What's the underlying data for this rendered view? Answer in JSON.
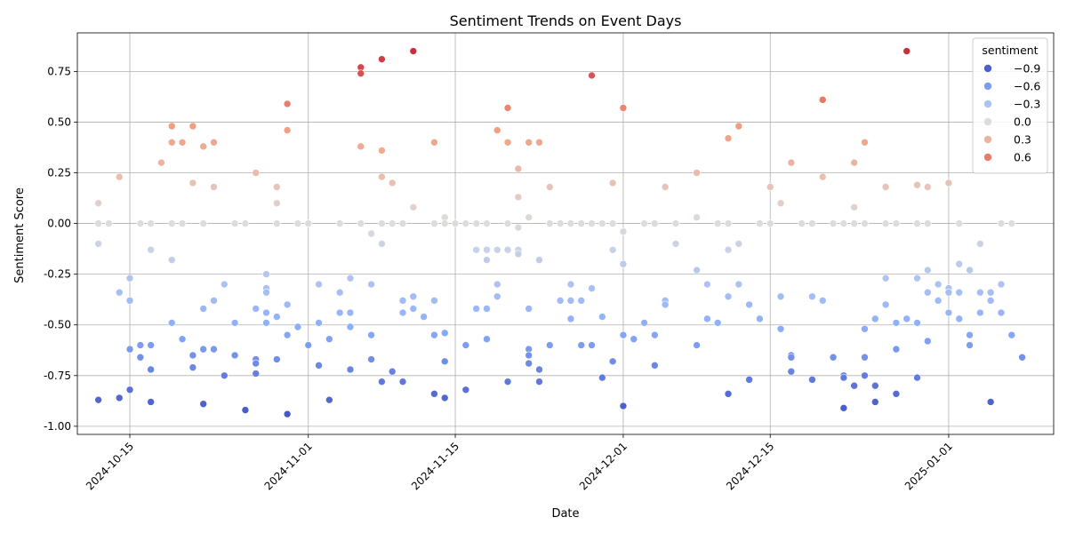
{
  "chart_data": {
    "type": "scatter",
    "title": "Sentiment Trends on Event Days",
    "xlabel": "Date",
    "ylabel": "Sentiment Score",
    "xlim": [
      "2024-10-10",
      "2025-01-11"
    ],
    "ylim": [
      -1.04,
      0.94
    ],
    "x_ticks": [
      "2024-10-15",
      "2024-11-01",
      "2024-11-15",
      "2024-12-01",
      "2024-12-15",
      "2025-01-01"
    ],
    "y_ticks": [
      "-1.00",
      "-0.75",
      "-0.50",
      "-0.25",
      "0.00",
      "0.25",
      "0.50",
      "0.75"
    ],
    "y_tick_values": [
      -1.0,
      -0.75,
      -0.5,
      -0.25,
      0.0,
      0.25,
      0.5,
      0.75
    ],
    "grid": true,
    "colormap": "coolwarm",
    "color_range": [
      -1.0,
      1.0
    ],
    "legend": {
      "title": "sentiment",
      "position": "top-right",
      "entries": [
        {
          "label": "−0.9",
          "value": -0.9
        },
        {
          "label": "−0.6",
          "value": -0.6
        },
        {
          "label": "−0.3",
          "value": -0.3
        },
        {
          "label": "0.0",
          "value": 0.0
        },
        {
          "label": "0.3",
          "value": 0.3
        },
        {
          "label": "0.6",
          "value": 0.6
        }
      ]
    },
    "points": [
      [
        "2024-10-12",
        0.1
      ],
      [
        "2024-10-12",
        0.0
      ],
      [
        "2024-10-12",
        -0.1
      ],
      [
        "2024-10-12",
        -0.87
      ],
      [
        "2024-10-13",
        0.0
      ],
      [
        "2024-10-14",
        0.23
      ],
      [
        "2024-10-14",
        -0.34
      ],
      [
        "2024-10-14",
        -0.86
      ],
      [
        "2024-10-15",
        -0.27
      ],
      [
        "2024-10-15",
        -0.38
      ],
      [
        "2024-10-15",
        -0.62
      ],
      [
        "2024-10-15",
        -0.82
      ],
      [
        "2024-10-16",
        0.0
      ],
      [
        "2024-10-16",
        -0.6
      ],
      [
        "2024-10-16",
        -0.66
      ],
      [
        "2024-10-17",
        0.0
      ],
      [
        "2024-10-17",
        -0.13
      ],
      [
        "2024-10-17",
        -0.6
      ],
      [
        "2024-10-17",
        -0.72
      ],
      [
        "2024-10-17",
        -0.88
      ],
      [
        "2024-10-18",
        0.3
      ],
      [
        "2024-10-19",
        0.48
      ],
      [
        "2024-10-19",
        0.4
      ],
      [
        "2024-10-19",
        0.0
      ],
      [
        "2024-10-19",
        -0.18
      ],
      [
        "2024-10-19",
        -0.49
      ],
      [
        "2024-10-20",
        0.4
      ],
      [
        "2024-10-20",
        0.0
      ],
      [
        "2024-10-20",
        -0.57
      ],
      [
        "2024-10-21",
        0.48
      ],
      [
        "2024-10-21",
        0.2
      ],
      [
        "2024-10-21",
        -0.65
      ],
      [
        "2024-10-21",
        -0.71
      ],
      [
        "2024-10-22",
        0.38
      ],
      [
        "2024-10-22",
        0.0
      ],
      [
        "2024-10-22",
        -0.42
      ],
      [
        "2024-10-22",
        -0.62
      ],
      [
        "2024-10-22",
        -0.89
      ],
      [
        "2024-10-23",
        0.4
      ],
      [
        "2024-10-23",
        0.18
      ],
      [
        "2024-10-23",
        -0.38
      ],
      [
        "2024-10-23",
        -0.62
      ],
      [
        "2024-10-24",
        -0.3
      ],
      [
        "2024-10-24",
        -0.75
      ],
      [
        "2024-10-25",
        0.0
      ],
      [
        "2024-10-25",
        -0.49
      ],
      [
        "2024-10-25",
        -0.65
      ],
      [
        "2024-10-26",
        0.0
      ],
      [
        "2024-10-26",
        -0.92
      ],
      [
        "2024-10-27",
        0.25
      ],
      [
        "2024-10-27",
        -0.42
      ],
      [
        "2024-10-27",
        -0.67
      ],
      [
        "2024-10-27",
        -0.69
      ],
      [
        "2024-10-27",
        -0.74
      ],
      [
        "2024-10-28",
        -0.25
      ],
      [
        "2024-10-28",
        -0.32
      ],
      [
        "2024-10-28",
        -0.34
      ],
      [
        "2024-10-28",
        -0.44
      ],
      [
        "2024-10-28",
        -0.49
      ],
      [
        "2024-10-29",
        0.18
      ],
      [
        "2024-10-29",
        0.1
      ],
      [
        "2024-10-29",
        0.0
      ],
      [
        "2024-10-29",
        -0.46
      ],
      [
        "2024-10-29",
        -0.67
      ],
      [
        "2024-10-30",
        0.59
      ],
      [
        "2024-10-30",
        0.46
      ],
      [
        "2024-10-30",
        -0.4
      ],
      [
        "2024-10-30",
        -0.55
      ],
      [
        "2024-10-30",
        -0.94
      ],
      [
        "2024-10-31",
        0.0
      ],
      [
        "2024-10-31",
        -0.51
      ],
      [
        "2024-11-01",
        0.0
      ],
      [
        "2024-11-01",
        -0.6
      ],
      [
        "2024-11-02",
        -0.3
      ],
      [
        "2024-11-02",
        -0.49
      ],
      [
        "2024-11-02",
        -0.7
      ],
      [
        "2024-11-03",
        -0.57
      ],
      [
        "2024-11-03",
        -0.87
      ],
      [
        "2024-11-04",
        0.0
      ],
      [
        "2024-11-04",
        -0.34
      ],
      [
        "2024-11-04",
        -0.44
      ],
      [
        "2024-11-05",
        -0.27
      ],
      [
        "2024-11-05",
        -0.44
      ],
      [
        "2024-11-05",
        -0.51
      ],
      [
        "2024-11-05",
        -0.72
      ],
      [
        "2024-11-06",
        0.77
      ],
      [
        "2024-11-06",
        0.74
      ],
      [
        "2024-11-06",
        0.38
      ],
      [
        "2024-11-06",
        0.0
      ],
      [
        "2024-11-07",
        -0.05
      ],
      [
        "2024-11-07",
        -0.3
      ],
      [
        "2024-11-07",
        -0.55
      ],
      [
        "2024-11-07",
        -0.67
      ],
      [
        "2024-11-08",
        0.81
      ],
      [
        "2024-11-08",
        0.36
      ],
      [
        "2024-11-08",
        0.23
      ],
      [
        "2024-11-08",
        0.0
      ],
      [
        "2024-11-08",
        -0.1
      ],
      [
        "2024-11-08",
        -0.78
      ],
      [
        "2024-11-09",
        0.2
      ],
      [
        "2024-11-09",
        0.0
      ],
      [
        "2024-11-09",
        -0.73
      ],
      [
        "2024-11-10",
        0.0
      ],
      [
        "2024-11-10",
        -0.38
      ],
      [
        "2024-11-10",
        -0.44
      ],
      [
        "2024-11-10",
        -0.78
      ],
      [
        "2024-11-11",
        0.85
      ],
      [
        "2024-11-11",
        0.08
      ],
      [
        "2024-11-11",
        -0.36
      ],
      [
        "2024-11-11",
        -0.42
      ],
      [
        "2024-11-12",
        -0.46
      ],
      [
        "2024-11-13",
        0.4
      ],
      [
        "2024-11-13",
        0.0
      ],
      [
        "2024-11-13",
        -0.38
      ],
      [
        "2024-11-13",
        -0.55
      ],
      [
        "2024-11-13",
        -0.84
      ],
      [
        "2024-11-14",
        0.03
      ],
      [
        "2024-11-14",
        0.0
      ],
      [
        "2024-11-14",
        -0.54
      ],
      [
        "2024-11-14",
        -0.68
      ],
      [
        "2024-11-14",
        -0.86
      ],
      [
        "2024-11-15",
        0.0
      ],
      [
        "2024-11-16",
        0.0
      ],
      [
        "2024-11-16",
        -0.6
      ],
      [
        "2024-11-16",
        -0.82
      ],
      [
        "2024-11-17",
        0.0
      ],
      [
        "2024-11-17",
        -0.13
      ],
      [
        "2024-11-17",
        -0.42
      ],
      [
        "2024-11-18",
        0.0
      ],
      [
        "2024-11-18",
        -0.13
      ],
      [
        "2024-11-18",
        -0.18
      ],
      [
        "2024-11-18",
        -0.42
      ],
      [
        "2024-11-18",
        -0.57
      ],
      [
        "2024-11-19",
        0.46
      ],
      [
        "2024-11-19",
        -0.13
      ],
      [
        "2024-11-19",
        -0.3
      ],
      [
        "2024-11-19",
        -0.36
      ],
      [
        "2024-11-20",
        0.57
      ],
      [
        "2024-11-20",
        0.4
      ],
      [
        "2024-11-20",
        0.0
      ],
      [
        "2024-11-20",
        -0.13
      ],
      [
        "2024-11-20",
        -0.78
      ],
      [
        "2024-11-21",
        0.27
      ],
      [
        "2024-11-21",
        0.13
      ],
      [
        "2024-11-21",
        -0.02
      ],
      [
        "2024-11-21",
        -0.13
      ],
      [
        "2024-11-21",
        -0.15
      ],
      [
        "2024-11-22",
        0.4
      ],
      [
        "2024-11-22",
        0.03
      ],
      [
        "2024-11-22",
        -0.42
      ],
      [
        "2024-11-22",
        -0.62
      ],
      [
        "2024-11-22",
        -0.65
      ],
      [
        "2024-11-22",
        -0.69
      ],
      [
        "2024-11-23",
        0.4
      ],
      [
        "2024-11-23",
        -0.18
      ],
      [
        "2024-11-23",
        -0.72
      ],
      [
        "2024-11-23",
        -0.78
      ],
      [
        "2024-11-24",
        0.18
      ],
      [
        "2024-11-24",
        0.0
      ],
      [
        "2024-11-24",
        -0.6
      ],
      [
        "2024-11-25",
        0.0
      ],
      [
        "2024-11-25",
        -0.38
      ],
      [
        "2024-11-26",
        0.0
      ],
      [
        "2024-11-26",
        -0.3
      ],
      [
        "2024-11-26",
        -0.38
      ],
      [
        "2024-11-26",
        -0.47
      ],
      [
        "2024-11-27",
        0.0
      ],
      [
        "2024-11-27",
        -0.38
      ],
      [
        "2024-11-27",
        -0.6
      ],
      [
        "2024-11-28",
        0.73
      ],
      [
        "2024-11-28",
        0.0
      ],
      [
        "2024-11-28",
        -0.32
      ],
      [
        "2024-11-28",
        -0.6
      ],
      [
        "2024-11-29",
        0.0
      ],
      [
        "2024-11-29",
        -0.46
      ],
      [
        "2024-11-29",
        -0.76
      ],
      [
        "2024-11-30",
        0.2
      ],
      [
        "2024-11-30",
        0.0
      ],
      [
        "2024-11-30",
        -0.13
      ],
      [
        "2024-11-30",
        -0.68
      ],
      [
        "2024-12-01",
        0.57
      ],
      [
        "2024-12-01",
        -0.04
      ],
      [
        "2024-12-01",
        -0.2
      ],
      [
        "2024-12-01",
        -0.55
      ],
      [
        "2024-12-01",
        -0.9
      ],
      [
        "2024-12-02",
        -0.57
      ],
      [
        "2024-12-03",
        0.0
      ],
      [
        "2024-12-03",
        -0.49
      ],
      [
        "2024-12-04",
        0.0
      ],
      [
        "2024-12-04",
        -0.55
      ],
      [
        "2024-12-04",
        -0.7
      ],
      [
        "2024-12-05",
        0.18
      ],
      [
        "2024-12-05",
        -0.38
      ],
      [
        "2024-12-05",
        -0.4
      ],
      [
        "2024-12-06",
        0.0
      ],
      [
        "2024-12-06",
        -0.1
      ],
      [
        "2024-12-08",
        0.25
      ],
      [
        "2024-12-08",
        0.03
      ],
      [
        "2024-12-08",
        -0.23
      ],
      [
        "2024-12-08",
        -0.6
      ],
      [
        "2024-12-09",
        -0.3
      ],
      [
        "2024-12-09",
        -0.47
      ],
      [
        "2024-12-10",
        0.0
      ],
      [
        "2024-12-10",
        -0.49
      ],
      [
        "2024-12-11",
        0.42
      ],
      [
        "2024-12-11",
        0.0
      ],
      [
        "2024-12-11",
        -0.13
      ],
      [
        "2024-12-11",
        -0.36
      ],
      [
        "2024-12-11",
        -0.84
      ],
      [
        "2024-12-12",
        0.48
      ],
      [
        "2024-12-12",
        -0.1
      ],
      [
        "2024-12-12",
        -0.3
      ],
      [
        "2024-12-13",
        -0.4
      ],
      [
        "2024-12-13",
        -0.77
      ],
      [
        "2024-12-14",
        0.0
      ],
      [
        "2024-12-14",
        -0.47
      ],
      [
        "2024-12-15",
        0.18
      ],
      [
        "2024-12-15",
        0.0
      ],
      [
        "2024-12-16",
        0.1
      ],
      [
        "2024-12-16",
        -0.36
      ],
      [
        "2024-12-16",
        -0.52
      ],
      [
        "2024-12-17",
        0.3
      ],
      [
        "2024-12-17",
        -0.65
      ],
      [
        "2024-12-17",
        -0.66
      ],
      [
        "2024-12-17",
        -0.73
      ],
      [
        "2024-12-18",
        0.0
      ],
      [
        "2024-12-19",
        0.0
      ],
      [
        "2024-12-19",
        -0.36
      ],
      [
        "2024-12-19",
        -0.77
      ],
      [
        "2024-12-20",
        0.61
      ],
      [
        "2024-12-20",
        0.23
      ],
      [
        "2024-12-20",
        -0.38
      ],
      [
        "2024-12-21",
        0.0
      ],
      [
        "2024-12-21",
        -0.66
      ],
      [
        "2024-12-22",
        0.0
      ],
      [
        "2024-12-22",
        -0.75
      ],
      [
        "2024-12-22",
        -0.76
      ],
      [
        "2024-12-22",
        -0.91
      ],
      [
        "2024-12-23",
        0.3
      ],
      [
        "2024-12-23",
        0.08
      ],
      [
        "2024-12-23",
        0.0
      ],
      [
        "2024-12-23",
        -0.8
      ],
      [
        "2024-12-24",
        0.4
      ],
      [
        "2024-12-24",
        0.0
      ],
      [
        "2024-12-24",
        -0.52
      ],
      [
        "2024-12-24",
        -0.66
      ],
      [
        "2024-12-24",
        -0.75
      ],
      [
        "2024-12-25",
        -0.47
      ],
      [
        "2024-12-25",
        -0.8
      ],
      [
        "2024-12-25",
        -0.88
      ],
      [
        "2024-12-26",
        0.18
      ],
      [
        "2024-12-26",
        0.0
      ],
      [
        "2024-12-26",
        -0.27
      ],
      [
        "2024-12-26",
        -0.4
      ],
      [
        "2024-12-27",
        0.0
      ],
      [
        "2024-12-27",
        -0.49
      ],
      [
        "2024-12-27",
        -0.62
      ],
      [
        "2024-12-27",
        -0.84
      ],
      [
        "2024-12-28",
        0.85
      ],
      [
        "2024-12-28",
        -0.47
      ],
      [
        "2024-12-29",
        0.19
      ],
      [
        "2024-12-29",
        0.0
      ],
      [
        "2024-12-29",
        -0.27
      ],
      [
        "2024-12-29",
        -0.49
      ],
      [
        "2024-12-29",
        -0.76
      ],
      [
        "2024-12-30",
        0.18
      ],
      [
        "2024-12-30",
        0.0
      ],
      [
        "2024-12-30",
        -0.23
      ],
      [
        "2024-12-30",
        -0.34
      ],
      [
        "2024-12-30",
        -0.58
      ],
      [
        "2024-12-31",
        -0.3
      ],
      [
        "2024-12-31",
        -0.38
      ],
      [
        "2025-01-01",
        0.2
      ],
      [
        "2025-01-01",
        -0.32
      ],
      [
        "2025-01-01",
        -0.34
      ],
      [
        "2025-01-01",
        -0.44
      ],
      [
        "2025-01-02",
        0.0
      ],
      [
        "2025-01-02",
        -0.2
      ],
      [
        "2025-01-02",
        -0.34
      ],
      [
        "2025-01-02",
        -0.47
      ],
      [
        "2025-01-03",
        -0.23
      ],
      [
        "2025-01-03",
        -0.55
      ],
      [
        "2025-01-03",
        -0.6
      ],
      [
        "2025-01-04",
        -0.1
      ],
      [
        "2025-01-04",
        -0.34
      ],
      [
        "2025-01-04",
        -0.44
      ],
      [
        "2025-01-05",
        -0.34
      ],
      [
        "2025-01-05",
        -0.38
      ],
      [
        "2025-01-05",
        -0.88
      ],
      [
        "2025-01-06",
        0.0
      ],
      [
        "2025-01-06",
        -0.3
      ],
      [
        "2025-01-06",
        -0.44
      ],
      [
        "2025-01-07",
        0.0
      ],
      [
        "2025-01-07",
        -0.55
      ],
      [
        "2025-01-08",
        -0.66
      ]
    ]
  }
}
